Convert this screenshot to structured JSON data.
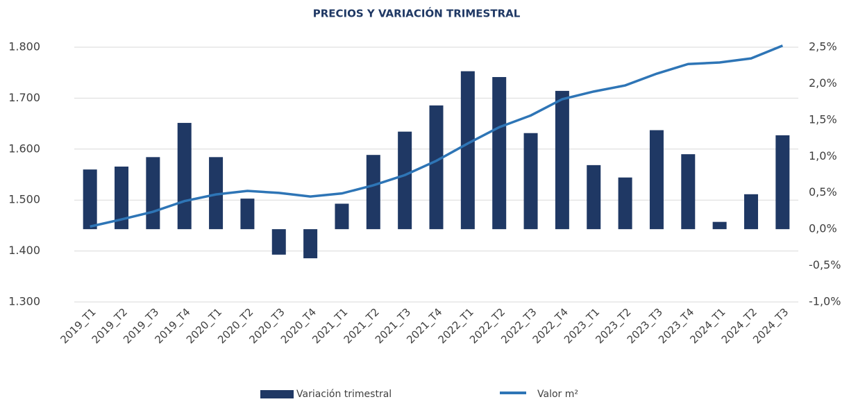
{
  "chart_data": {
    "type": "bar_line",
    "title": "PRECIOS Y VARIACIÓN TRIMESTRAL",
    "categories": [
      "2019_T1",
      "2019_T2",
      "2019_T3",
      "2019_T4",
      "2020_T1",
      "2020_T2",
      "2020_T3",
      "2020_T4",
      "2021_T1",
      "2021_T2",
      "2021_T3",
      "2021_T4",
      "2022_T1",
      "2022_T2",
      "2022_T3",
      "2022_T4",
      "2023_T1",
      "2023_T2",
      "2023_T3",
      "2023_T4",
      "2024_T1",
      "2024_T2",
      "2024_T3"
    ],
    "series": [
      {
        "name": "Variación trimestral",
        "type": "bar",
        "axis": "y2",
        "color": "#1f3864",
        "values": [
          0.82,
          0.86,
          0.99,
          1.46,
          0.99,
          0.42,
          -0.35,
          -0.4,
          0.35,
          1.02,
          1.34,
          1.7,
          2.17,
          2.09,
          1.32,
          1.9,
          0.88,
          0.71,
          1.36,
          1.03,
          0.1,
          0.48,
          1.29
        ]
      },
      {
        "name": "Valor m²",
        "type": "line",
        "axis": "y",
        "color": "#2e75b6",
        "values": [
          1448,
          1462,
          1477,
          1498,
          1511,
          1518,
          1514,
          1507,
          1513,
          1529,
          1549,
          1577,
          1611,
          1643,
          1666,
          1698,
          1713,
          1725,
          1748,
          1767,
          1770,
          1778,
          1803
        ]
      }
    ],
    "ylim": [
      1300,
      1800
    ],
    "yticks": [
      {
        "value": 1300,
        "label": "1.300"
      },
      {
        "value": 1400,
        "label": "1.400"
      },
      {
        "value": 1500,
        "label": "1.500"
      },
      {
        "value": 1600,
        "label": "1.600"
      },
      {
        "value": 1700,
        "label": "1.700"
      },
      {
        "value": 1800,
        "label": "1.800"
      }
    ],
    "y2lim": [
      -1.0,
      2.5
    ],
    "y2ticks": [
      {
        "value": -1.0,
        "label": "-1,0%"
      },
      {
        "value": -0.5,
        "label": "-0,5%"
      },
      {
        "value": 0,
        "label": "0,0%"
      },
      {
        "value": 0.5,
        "label": "0,5%"
      },
      {
        "value": 1.0,
        "label": "1,0%"
      },
      {
        "value": 1.5,
        "label": "1,5%"
      },
      {
        "value": 2.0,
        "label": "2,0%"
      },
      {
        "value": 2.5,
        "label": "2,5%"
      }
    ],
    "grid": true,
    "legend": "bottom"
  }
}
